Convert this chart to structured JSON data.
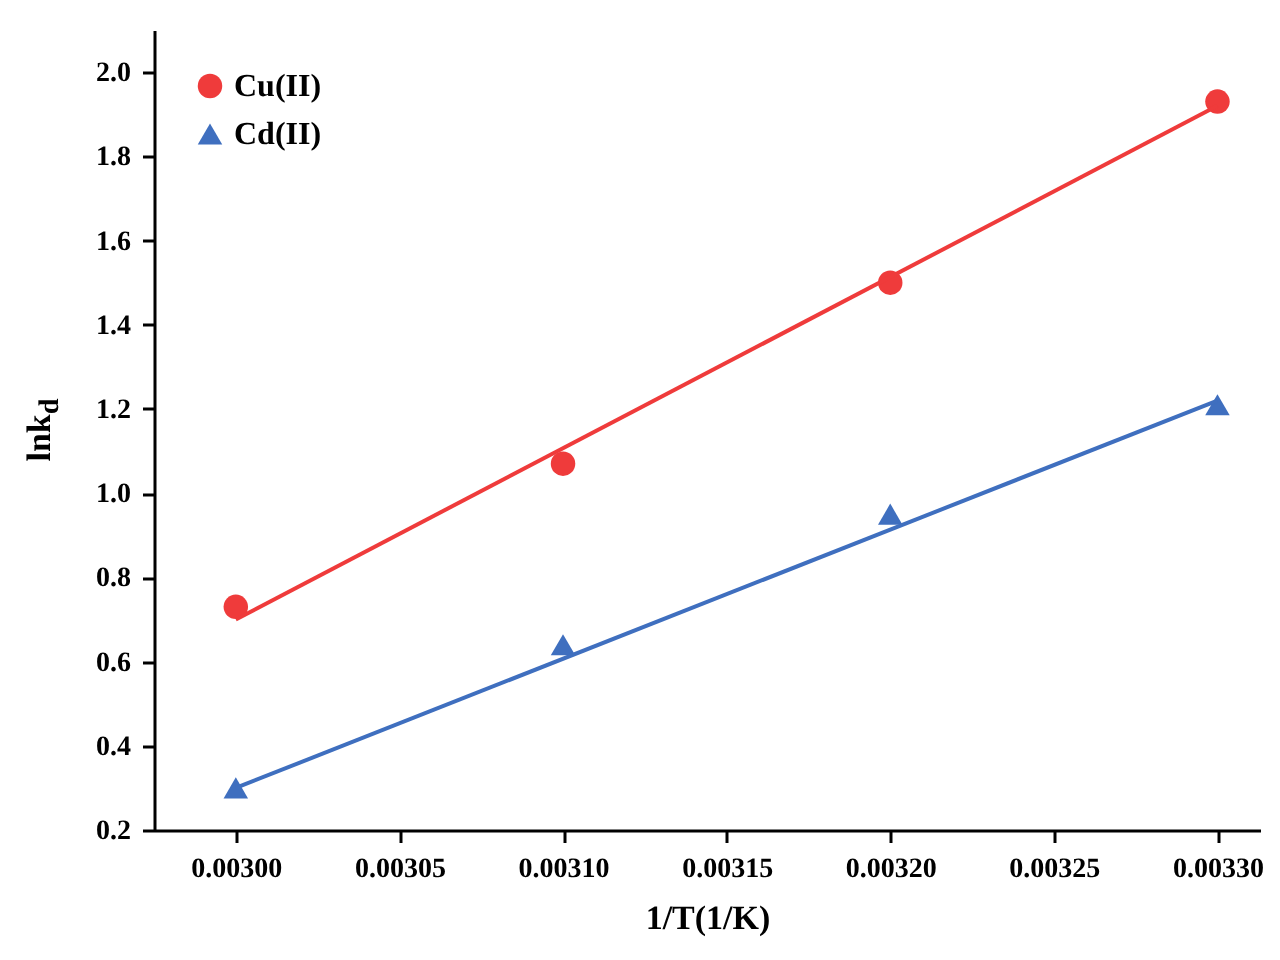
{
  "chart_data": {
    "type": "scatter",
    "xlabel": "1/T(1/K)",
    "ylabel": "lnk$_{d}$",
    "xlim": [
      0.002975,
      0.003313
    ],
    "xticks": [
      {
        "value": 0.003,
        "label": "0.00300"
      },
      {
        "value": 0.00305,
        "label": "0.00305"
      },
      {
        "value": 0.0031,
        "label": "0.00310"
      },
      {
        "value": 0.00315,
        "label": "0.00315"
      },
      {
        "value": 0.0032,
        "label": "0.00320"
      },
      {
        "value": 0.00325,
        "label": "0.00325"
      },
      {
        "value": 0.0033,
        "label": "0.00330"
      }
    ],
    "ylim": [
      0.2,
      2.1
    ],
    "yticks": [
      0.2,
      0.4,
      0.6,
      0.8,
      {
        "value": 1,
        "label": "1.0"
      },
      1.2,
      1.4,
      1.6,
      1.8,
      {
        "value": 2,
        "label": "2.0"
      }
    ],
    "grid": false,
    "legend": "top left",
    "series": [
      {
        "name": "Cu(II)",
        "marker": "circle",
        "color": "#ef3b3b",
        "x": [
          0.003,
          0.0031,
          0.0032,
          0.0033
        ],
        "values": [
          0.73,
          1.07,
          1.5,
          1.93
        ]
      },
      {
        "name": "Cd(II)",
        "marker": "triangle",
        "color": "#3f6fbf",
        "x": [
          0.003,
          0.0031,
          0.0032,
          0.0033
        ],
        "values": [
          0.3,
          0.64,
          0.95,
          1.21
        ]
      },
      {
        "type": "line",
        "color": "#ef3b3b",
        "x": [
          0.003,
          0.0033
        ],
        "values": [
          0.7,
          1.92
        ]
      },
      {
        "type": "line",
        "color": "#3f6fbf",
        "x": [
          0.003,
          0.0033
        ],
        "values": [
          0.3,
          1.22
        ]
      }
    ]
  }
}
